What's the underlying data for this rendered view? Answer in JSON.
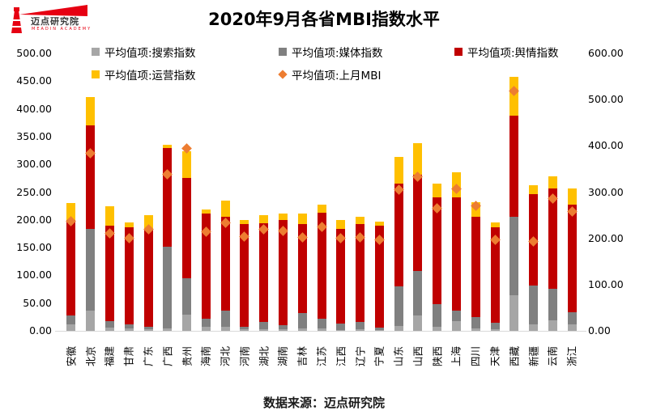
{
  "logo": {
    "title": "迈点研究院",
    "subtitle": "MEADIN ACADEMY",
    "brand_color": "#e60012"
  },
  "title": "2020年9月各省MBI指数水平",
  "footer": "数据来源：迈点研究院",
  "legend": {
    "items": [
      {
        "label": "平均值项:搜索指数",
        "color": "#a6a6a6",
        "shape": "square"
      },
      {
        "label": "平均值项:媒体指数",
        "color": "#808080",
        "shape": "square"
      },
      {
        "label": "平均值项:舆情指数",
        "color": "#c00000",
        "shape": "square"
      },
      {
        "label": "平均值项:运营指数",
        "color": "#ffc000",
        "shape": "square"
      },
      {
        "label": "平均值项:上月MBI",
        "color": "#ed7d31",
        "shape": "diamond"
      }
    ]
  },
  "chart_data": {
    "type": "bar",
    "stacked": true,
    "grid": false,
    "legend_position": "top",
    "title": "2020年9月各省MBI指数水平",
    "categories": [
      "安徽",
      "北京",
      "福建",
      "甘肃",
      "广东",
      "广西",
      "贵州",
      "海南",
      "河北",
      "河南",
      "湖北",
      "湖南",
      "吉林",
      "江苏",
      "江西",
      "辽宁",
      "宁夏",
      "山东",
      "山西",
      "陕西",
      "上海",
      "四川",
      "天津",
      "西藏",
      "新疆",
      "云南",
      "浙江"
    ],
    "series": [
      {
        "name": "平均值项:搜索指数",
        "color": "#a6a6a6",
        "axis": "left",
        "values": [
          12,
          37,
          6,
          4,
          3,
          5,
          29,
          7,
          7,
          3,
          3,
          3,
          5,
          4,
          2,
          3,
          2,
          9,
          28,
          8,
          18,
          4,
          3,
          64,
          12,
          19,
          11
        ]
      },
      {
        "name": "平均值项:媒体指数",
        "color": "#808080",
        "axis": "left",
        "values": [
          16,
          146,
          12,
          8,
          5,
          146,
          66,
          15,
          29,
          5,
          13,
          7,
          27,
          18,
          11,
          13,
          4,
          71,
          80,
          40,
          19,
          21,
          12,
          141,
          70,
          57,
          22
        ]
      },
      {
        "name": "平均值项:舆情指数",
        "color": "#c00000",
        "axis": "left",
        "values": [
          171,
          187,
          172,
          175,
          175,
          178,
          181,
          190,
          170,
          185,
          178,
          189,
          161,
          191,
          171,
          176,
          184,
          186,
          173,
          193,
          203,
          180,
          172,
          183,
          165,
          181,
          194
        ]
      },
      {
        "name": "平均值项:运营指数",
        "color": "#ffc000",
        "axis": "left",
        "values": [
          32,
          51,
          35,
          9,
          25,
          6,
          48,
          7,
          28,
          7,
          15,
          13,
          18,
          14,
          16,
          13,
          7,
          48,
          57,
          25,
          45,
          27,
          9,
          70,
          16,
          21,
          29
        ]
      }
    ],
    "scatter_series": {
      "name": "平均值项:上月MBI",
      "color": "#ed7d31",
      "axis": "right",
      "marker": "diamond",
      "values": [
        237,
        384,
        210,
        200,
        219,
        339,
        395,
        214,
        233,
        204,
        219,
        216,
        202,
        225,
        200,
        202,
        196,
        305,
        333,
        265,
        307,
        271,
        196,
        519,
        193,
        286,
        258
      ]
    },
    "axes": {
      "left": {
        "min": 0,
        "max": 500,
        "step": 50,
        "tick_format": "0.00"
      },
      "right": {
        "min": 0,
        "max": 600,
        "step": 100,
        "tick_format": "0.00"
      }
    }
  }
}
